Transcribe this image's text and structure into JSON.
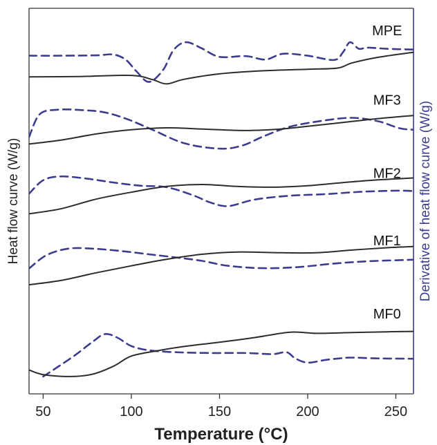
{
  "chart_data": {
    "type": "line",
    "xlabel": "Temperature (°C)",
    "ylabel_left": "Heat flow curve (W/g)",
    "ylabel_right": "Derivative of heat flow curve (W/g)",
    "xlim": [
      42,
      260
    ],
    "ylim": [
      0,
      100
    ],
    "xticks": [
      50,
      100,
      150,
      200,
      250
    ],
    "yticks_shown": false,
    "grid": false,
    "colors": {
      "heat_flow": "#2b2b2b",
      "derivative": "#3b3b8f",
      "right_axis": "#3b3b8f",
      "axis": "#333333"
    },
    "series": [
      {
        "name": "MPE",
        "label_at": [
          245,
          93.0
        ],
        "heat_flow": [
          [
            42,
            82.2
          ],
          [
            70,
            82.3
          ],
          [
            100,
            82.6
          ],
          [
            112,
            81.5
          ],
          [
            120,
            80.4
          ],
          [
            130,
            81.6
          ],
          [
            150,
            83.0
          ],
          [
            175,
            83.8
          ],
          [
            200,
            84.2
          ],
          [
            217,
            84.5
          ],
          [
            225,
            85.8
          ],
          [
            240,
            87.3
          ],
          [
            260,
            88.6
          ]
        ],
        "derivative": [
          [
            42,
            87.7
          ],
          [
            60,
            87.7
          ],
          [
            80,
            87.8
          ],
          [
            90,
            88.0
          ],
          [
            97,
            86.6
          ],
          [
            103,
            83.6
          ],
          [
            110,
            80.9
          ],
          [
            118,
            84.0
          ],
          [
            124,
            89.2
          ],
          [
            131,
            91.2
          ],
          [
            140,
            89.6
          ],
          [
            150,
            87.4
          ],
          [
            165,
            87.6
          ],
          [
            176,
            86.7
          ],
          [
            186,
            88.2
          ],
          [
            200,
            87.7
          ],
          [
            215,
            86.6
          ],
          [
            220,
            88.6
          ],
          [
            224,
            91.2
          ],
          [
            229,
            89.5
          ],
          [
            234,
            89.8
          ],
          [
            245,
            89.5
          ],
          [
            260,
            89.3
          ]
        ]
      },
      {
        "name": "MF3",
        "label_at": [
          245,
          75.0
        ],
        "heat_flow": [
          [
            42,
            64.8
          ],
          [
            60,
            65.8
          ],
          [
            80,
            67.4
          ],
          [
            100,
            68.5
          ],
          [
            120,
            69.0
          ],
          [
            140,
            68.7
          ],
          [
            165,
            68.3
          ],
          [
            185,
            68.7
          ],
          [
            200,
            69.4
          ],
          [
            220,
            70.4
          ],
          [
            240,
            71.4
          ],
          [
            260,
            72.2
          ]
        ],
        "derivative": [
          [
            42,
            66.6
          ],
          [
            48,
            72.5
          ],
          [
            58,
            73.7
          ],
          [
            72,
            73.6
          ],
          [
            85,
            73.0
          ],
          [
            98,
            71.2
          ],
          [
            112,
            68.5
          ],
          [
            130,
            65.0
          ],
          [
            150,
            63.6
          ],
          [
            163,
            64.4
          ],
          [
            175,
            66.8
          ],
          [
            190,
            69.3
          ],
          [
            208,
            70.8
          ],
          [
            225,
            71.6
          ],
          [
            240,
            70.7
          ],
          [
            252,
            68.9
          ],
          [
            260,
            68.5
          ]
        ]
      },
      {
        "name": "MF2",
        "label_at": [
          245,
          56.0
        ],
        "heat_flow": [
          [
            42,
            46.7
          ],
          [
            60,
            48.0
          ],
          [
            80,
            50.5
          ],
          [
            100,
            52.3
          ],
          [
            120,
            53.8
          ],
          [
            140,
            54.3
          ],
          [
            160,
            53.8
          ],
          [
            180,
            53.6
          ],
          [
            200,
            54.0
          ],
          [
            220,
            54.8
          ],
          [
            240,
            55.5
          ],
          [
            260,
            56.0
          ]
        ],
        "derivative": [
          [
            42,
            51.9
          ],
          [
            50,
            55.4
          ],
          [
            60,
            56.4
          ],
          [
            75,
            55.8
          ],
          [
            90,
            54.8
          ],
          [
            105,
            54.0
          ],
          [
            120,
            53.6
          ],
          [
            135,
            51.5
          ],
          [
            145,
            49.6
          ],
          [
            155,
            48.7
          ],
          [
            170,
            50.4
          ],
          [
            190,
            51.4
          ],
          [
            210,
            51.8
          ],
          [
            230,
            52.4
          ],
          [
            250,
            52.7
          ],
          [
            260,
            52.6
          ]
        ]
      },
      {
        "name": "MF1",
        "label_at": [
          245,
          38.5
        ],
        "heat_flow": [
          [
            42,
            28.3
          ],
          [
            60,
            29.4
          ],
          [
            80,
            31.4
          ],
          [
            100,
            33.2
          ],
          [
            120,
            34.9
          ],
          [
            140,
            36.2
          ],
          [
            160,
            36.8
          ],
          [
            185,
            36.6
          ],
          [
            205,
            36.6
          ],
          [
            225,
            37.3
          ],
          [
            245,
            37.9
          ],
          [
            260,
            38.2
          ]
        ],
        "derivative": [
          [
            42,
            32.5
          ],
          [
            52,
            36.0
          ],
          [
            65,
            37.7
          ],
          [
            80,
            37.6
          ],
          [
            95,
            37.0
          ],
          [
            110,
            36.2
          ],
          [
            125,
            35.4
          ],
          [
            140,
            34.5
          ],
          [
            155,
            33.2
          ],
          [
            175,
            32.6
          ],
          [
            195,
            32.9
          ],
          [
            215,
            33.8
          ],
          [
            235,
            34.4
          ],
          [
            260,
            34.8
          ]
        ]
      },
      {
        "name": "MF0",
        "label_at": [
          245,
          19.5
        ],
        "heat_flow": [
          [
            42,
            6.2
          ],
          [
            50,
            5.0
          ],
          [
            65,
            4.5
          ],
          [
            78,
            5.1
          ],
          [
            90,
            7.2
          ],
          [
            100,
            9.8
          ],
          [
            115,
            11.2
          ],
          [
            130,
            12.3
          ],
          [
            150,
            13.4
          ],
          [
            170,
            14.6
          ],
          [
            190,
            16.0
          ],
          [
            205,
            15.7
          ],
          [
            225,
            15.9
          ],
          [
            245,
            16.1
          ],
          [
            260,
            16.2
          ]
        ],
        "derivative": [
          [
            50,
            4.5
          ],
          [
            58,
            6.9
          ],
          [
            68,
            10.0
          ],
          [
            78,
            13.5
          ],
          [
            85,
            15.5
          ],
          [
            92,
            14.6
          ],
          [
            100,
            12.4
          ],
          [
            110,
            11.3
          ],
          [
            125,
            10.8
          ],
          [
            145,
            10.6
          ],
          [
            165,
            10.6
          ],
          [
            180,
            10.3
          ],
          [
            188,
            10.8
          ],
          [
            193,
            9.2
          ],
          [
            200,
            8.1
          ],
          [
            210,
            8.8
          ],
          [
            218,
            9.2
          ],
          [
            225,
            9.4
          ],
          [
            240,
            9.2
          ],
          [
            260,
            9.1
          ]
        ]
      }
    ]
  }
}
